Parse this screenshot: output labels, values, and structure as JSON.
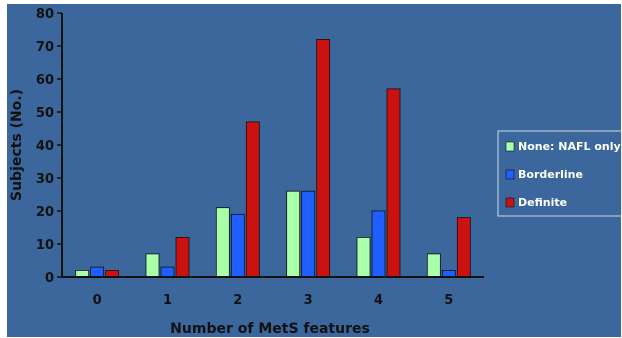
{
  "chart_data": {
    "type": "bar",
    "title": "",
    "xlabel": "Number of MetS features",
    "ylabel": "Subjects (No.)",
    "categories": [
      "0",
      "1",
      "2",
      "3",
      "4",
      "5"
    ],
    "ylim": [
      0,
      80
    ],
    "yticks": [
      "0",
      "10",
      "20",
      "30",
      "40",
      "50",
      "60",
      "70",
      "80"
    ],
    "grid": false,
    "legend_position": "right",
    "series": [
      {
        "name": "None: NAFL only",
        "color": "#aaffaa",
        "values": [
          2,
          7,
          21,
          26,
          12,
          7
        ]
      },
      {
        "name": "Borderline",
        "color": "#1f5fff",
        "values": [
          3,
          3,
          19,
          26,
          20,
          2
        ]
      },
      {
        "name": "Definite",
        "color": "#cc1111",
        "values": [
          2,
          12,
          47,
          72,
          57,
          18
        ]
      }
    ],
    "colors": {
      "background": "#3c679c",
      "plot_background": "#3c679c",
      "axis": "#111111"
    }
  }
}
